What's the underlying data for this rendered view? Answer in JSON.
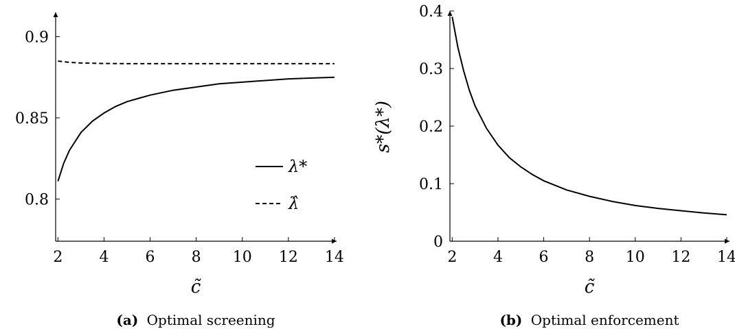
{
  "chart_data": [
    {
      "type": "line",
      "xlabel": "c̃",
      "ylabel": "",
      "xlim": [
        1.9,
        14.3
      ],
      "ylim": [
        0.774,
        0.915
      ],
      "xticks": [
        2,
        4,
        6,
        8,
        10,
        12,
        14
      ],
      "yticks": [
        0.8,
        0.85,
        0.9
      ],
      "ytick_labels": [
        "0.8",
        "0.85",
        "0.9"
      ],
      "caption_prefix": "(a)",
      "caption_text": "Optimal screening",
      "legend_position": "right",
      "series": [
        {
          "name": "λ*",
          "style": "solid",
          "x": [
            2,
            2.25,
            2.5,
            3,
            3.5,
            4,
            4.5,
            5,
            5.5,
            6,
            7,
            8,
            9,
            10,
            11,
            12,
            13,
            14
          ],
          "y": [
            0.811,
            0.822,
            0.83,
            0.841,
            0.848,
            0.853,
            0.857,
            0.86,
            0.862,
            0.864,
            0.867,
            0.869,
            0.871,
            0.872,
            0.873,
            0.874,
            0.8745,
            0.875
          ]
        },
        {
          "name": "λ̂",
          "style": "dashed",
          "x": [
            2,
            2.5,
            3,
            4,
            5,
            6,
            8,
            10,
            12,
            14
          ],
          "y": [
            0.885,
            0.8842,
            0.8838,
            0.8835,
            0.8834,
            0.8834,
            0.8834,
            0.8834,
            0.8834,
            0.8834
          ]
        }
      ]
    },
    {
      "type": "line",
      "xlabel": "c̃",
      "ylabel": "s*(λ*)",
      "xlim": [
        1.9,
        14.3
      ],
      "ylim": [
        0,
        0.4
      ],
      "xticks": [
        2,
        4,
        6,
        8,
        10,
        12,
        14
      ],
      "yticks": [
        0,
        0.1,
        0.2,
        0.3,
        0.4
      ],
      "ytick_labels": [
        "0",
        "0.1",
        "0.2",
        "0.3",
        "0.4"
      ],
      "caption_prefix": "(b)",
      "caption_text": "Optimal enforcement",
      "series": [
        {
          "name": "",
          "style": "solid",
          "x": [
            2,
            2.25,
            2.5,
            2.75,
            3,
            3.5,
            4,
            4.5,
            5,
            5.5,
            6,
            7,
            8,
            9,
            10,
            11,
            12,
            13,
            14
          ],
          "y": [
            0.39,
            0.336,
            0.296,
            0.262,
            0.235,
            0.196,
            0.167,
            0.145,
            0.129,
            0.116,
            0.105,
            0.089,
            0.078,
            0.069,
            0.062,
            0.057,
            0.053,
            0.049,
            0.046
          ]
        }
      ]
    }
  ]
}
